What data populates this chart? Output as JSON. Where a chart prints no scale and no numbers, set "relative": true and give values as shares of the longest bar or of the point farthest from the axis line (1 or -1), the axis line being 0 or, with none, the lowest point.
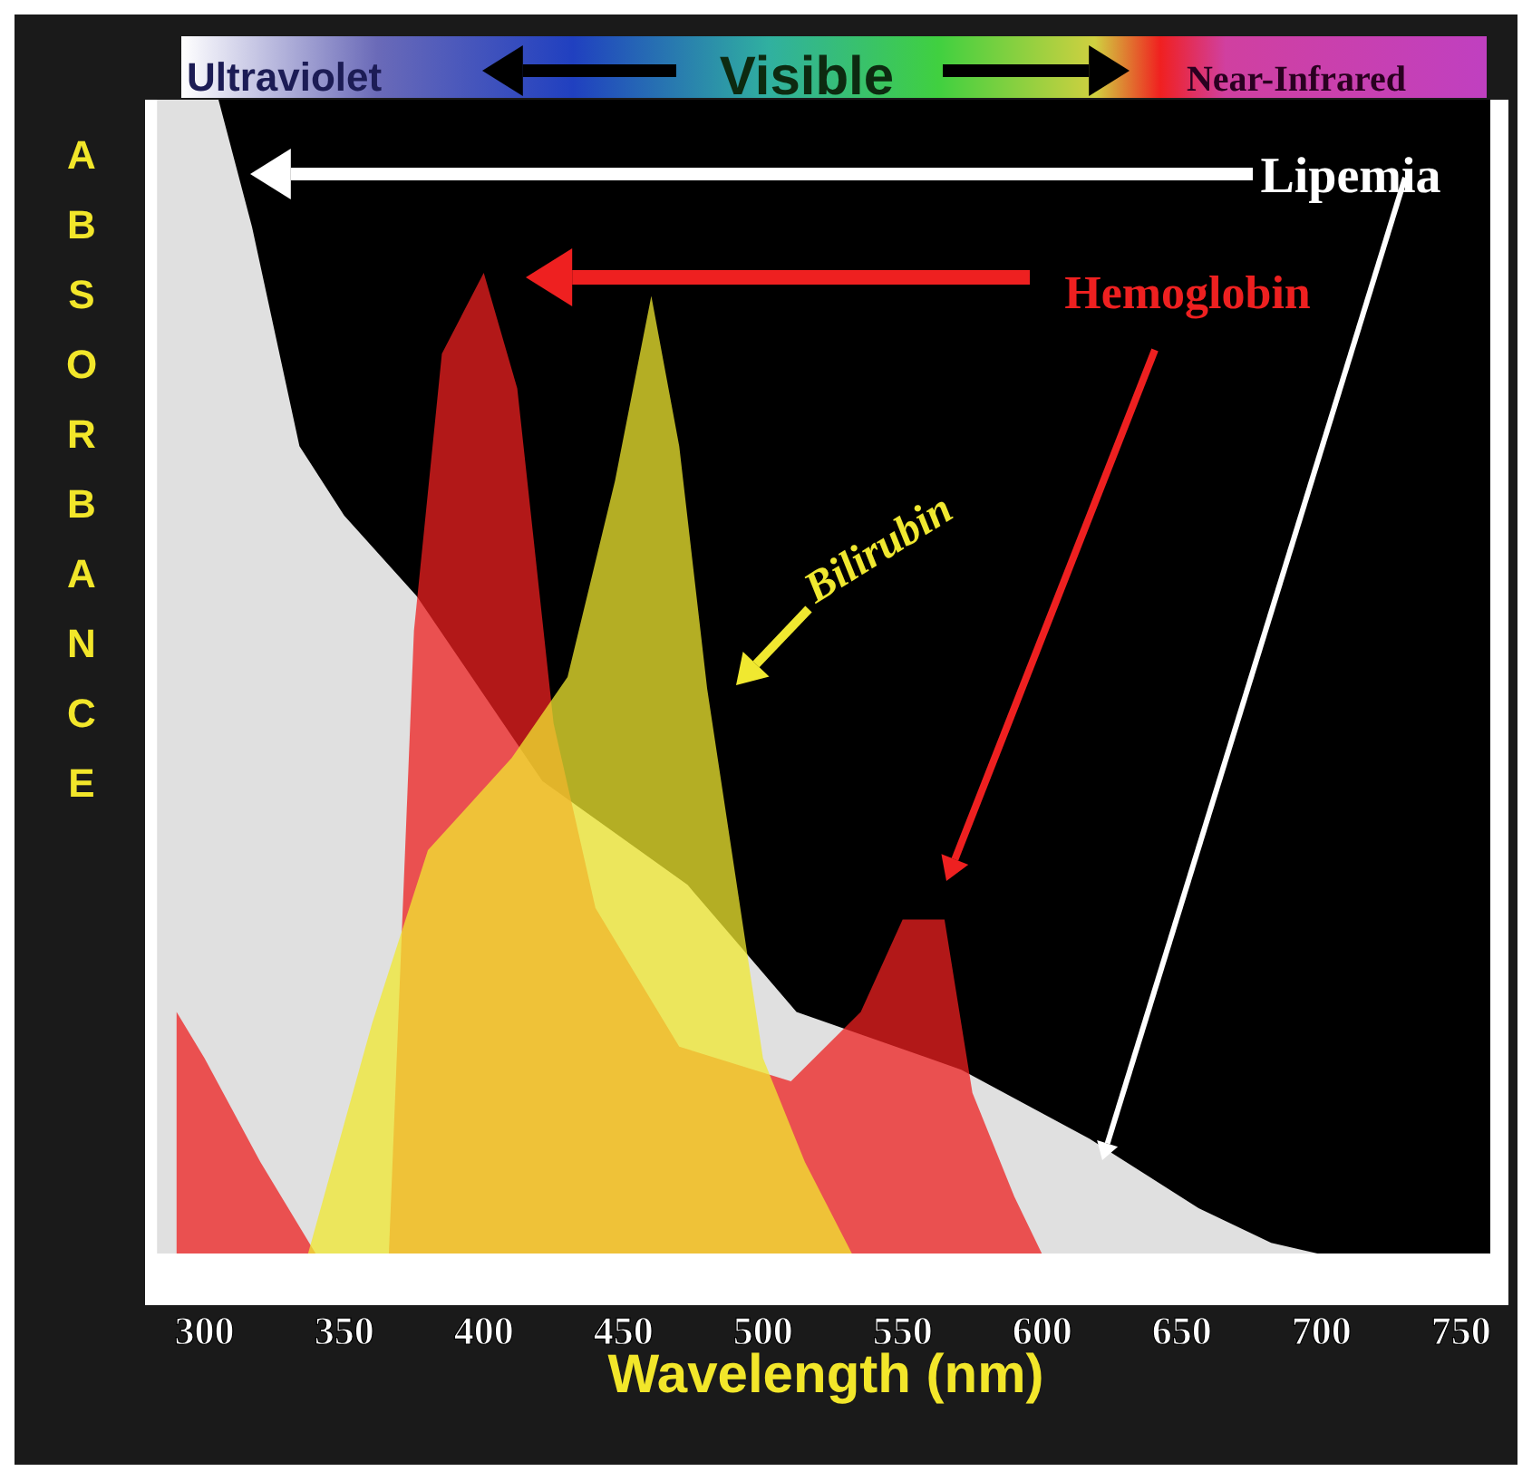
{
  "chart_data": {
    "type": "area",
    "relative": true,
    "xlabel": "Wavelength (nm)",
    "ylabel": "ABSORBANCE",
    "xlim": [
      280,
      765
    ],
    "xticks": [
      300,
      350,
      400,
      450,
      500,
      550,
      600,
      650,
      700,
      750
    ],
    "tick_labels": "x",
    "legend": false,
    "grid": false,
    "annotations": [
      "Ultraviolet",
      "Visible",
      "Near-Infrared"
    ],
    "series": [
      {
        "name": "Lipemia",
        "color": "#e0e0e0",
        "x": [
          283,
          305,
          317,
          334,
          350,
          376,
          421,
          473,
          512,
          571,
          617,
          656,
          682,
          700
        ],
        "values": [
          1,
          1,
          0.89,
          0.7,
          0.64,
          0.57,
          0.41,
          0.32,
          0.21,
          0.16,
          0.1,
          0.04,
          0.01,
          0
        ]
      },
      {
        "name": "Hemoglobin",
        "color": "#ee2020",
        "x": [
          290,
          300,
          320,
          340,
          366,
          375,
          385,
          400,
          412,
          425,
          440,
          470,
          510,
          535,
          550,
          565,
          575,
          590,
          600
        ],
        "values": [
          0.21,
          0.17,
          0.08,
          0,
          0,
          0.54,
          0.78,
          0.85,
          0.75,
          0.46,
          0.3,
          0.18,
          0.15,
          0.21,
          0.29,
          0.29,
          0.14,
          0.05,
          0
        ]
      },
      {
        "name": "Bilirubin",
        "color": "#f0e830",
        "x": [
          337,
          360,
          380,
          410,
          430,
          447,
          460,
          470,
          480,
          490,
          500,
          515,
          532
        ],
        "values": [
          0,
          0.2,
          0.35,
          0.43,
          0.5,
          0.67,
          0.83,
          0.7,
          0.49,
          0.33,
          0.17,
          0.08,
          0
        ]
      }
    ]
  }
}
